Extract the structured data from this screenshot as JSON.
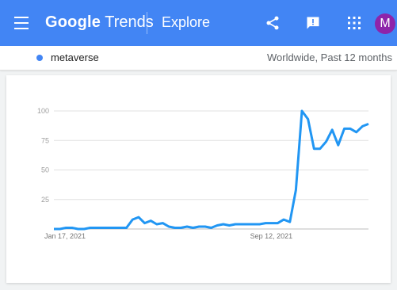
{
  "header": {
    "brand_google": "Google",
    "brand_trends": "Trends",
    "section": "Explore",
    "avatar_letter": "M",
    "icons": [
      "menu-icon",
      "share-icon",
      "feedback-icon",
      "apps-icon"
    ],
    "color": "#4285f4"
  },
  "term": {
    "label": "metaverse",
    "dot_color": "#4285f4",
    "scope": "Worldwide, Past 12 months"
  },
  "chart_data": {
    "type": "line",
    "x_tick_labels": [
      "Jan 17, 2021",
      "Sep 12, 2021"
    ],
    "y_ticks": [
      "100",
      "75",
      "50",
      "25"
    ],
    "ylim": [
      0,
      100
    ],
    "grid": true,
    "series": [
      {
        "color": "#2196f3",
        "values": [
          0,
          0,
          1,
          1,
          0,
          0,
          1,
          1,
          1,
          1,
          1,
          1,
          1,
          8,
          10,
          5,
          7,
          4,
          5,
          2,
          1,
          1,
          2,
          1,
          2,
          2,
          1,
          3,
          4,
          3,
          4,
          4,
          4,
          4,
          4,
          5,
          5,
          5,
          8,
          6,
          33,
          100,
          93,
          68,
          68,
          74,
          84,
          71,
          85,
          85,
          82,
          87,
          89
        ]
      }
    ]
  }
}
